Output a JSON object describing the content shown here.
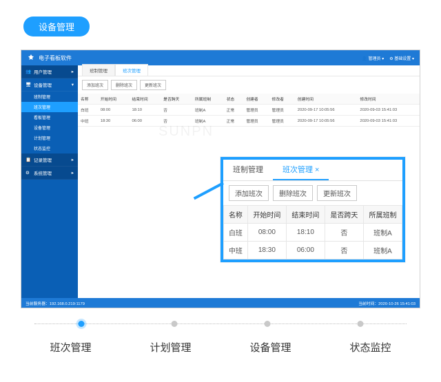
{
  "page_badge": "设备管理",
  "app": {
    "title": "电子看板软件",
    "header_right": {
      "user": "管理员",
      "settings": "基础设置"
    },
    "sidebar": {
      "groups": [
        {
          "icon": "users",
          "label": "用户管理",
          "items": []
        },
        {
          "icon": "monitor",
          "label": "设备管理",
          "items": [
            {
              "label": "班制管理"
            },
            {
              "label": "班次管理",
              "active": true
            },
            {
              "label": "看板管理"
            },
            {
              "label": "设备管理"
            },
            {
              "label": "计划管理"
            },
            {
              "label": "状态监控"
            }
          ]
        },
        {
          "icon": "clipboard",
          "label": "记录管理",
          "items": []
        },
        {
          "icon": "gear",
          "label": "系统管理",
          "items": []
        }
      ]
    },
    "tabs": [
      {
        "label": "班制管理",
        "active": false
      },
      {
        "label": "班次管理",
        "active": true
      }
    ],
    "toolbar": [
      "添加班次",
      "删除班次",
      "更新班次"
    ],
    "table": {
      "columns": [
        "名称",
        "开始时间",
        "结束时间",
        "是否跨天",
        "所属班制",
        "状态",
        "创建者",
        "修改者",
        "创建时间",
        "修改时间"
      ],
      "rows": [
        [
          "白班",
          "08:00",
          "18:10",
          "否",
          "班制A",
          "正常",
          "管理员",
          "管理员",
          "2020-09-17 10:05:56",
          "2020-09-03 15:41:03"
        ],
        [
          "中班",
          "18:30",
          "06:00",
          "否",
          "班制A",
          "正常",
          "管理员",
          "管理员",
          "2020-09-17 10:05:56",
          "2020-09-03 15:41:03"
        ]
      ]
    },
    "footer": {
      "left": "当前服务器：192.168.0.219:1179",
      "right": "当前时间：2020-10-26 15:41:03"
    }
  },
  "callout": {
    "tabs": [
      {
        "label": "班制管理"
      },
      {
        "label": "班次管理",
        "active": true
      }
    ],
    "toolbar": [
      "添加班次",
      "删除班次",
      "更新班次"
    ],
    "table": {
      "columns": [
        "名称",
        "开始时间",
        "结束时间",
        "是否跨天",
        "所属班制"
      ],
      "rows": [
        [
          "白班",
          "08:00",
          "18:10",
          "否",
          "班制A"
        ],
        [
          "中班",
          "18:30",
          "06:00",
          "否",
          "班制A"
        ]
      ]
    }
  },
  "stepper": {
    "active_index": 0,
    "items": [
      "班次管理",
      "计划管理",
      "设备管理",
      "状态监控"
    ]
  },
  "watermark": "SUNPN",
  "colors": {
    "primary": "#1e9fff",
    "header": "#1e7ad6",
    "sidebar": "#0a5fb5"
  }
}
